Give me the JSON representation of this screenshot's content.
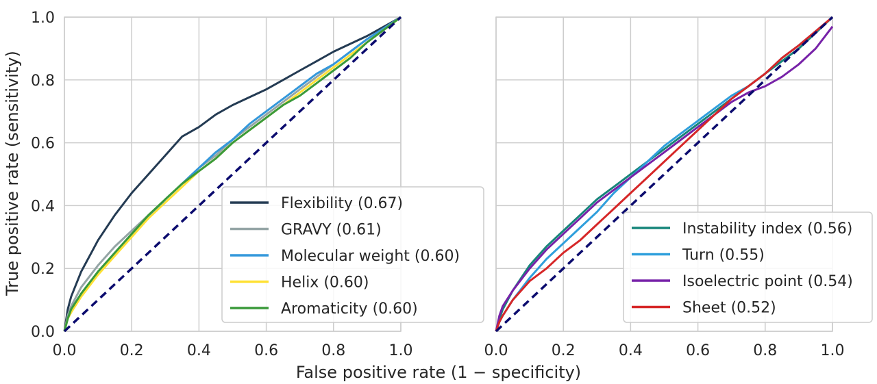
{
  "figure": {
    "ylabel": "True positive rate (sensitivity)",
    "xlabel": "False positive rate (1 − specificity)"
  },
  "chart_data": [
    {
      "type": "line",
      "xlim": [
        0,
        1
      ],
      "ylim": [
        0,
        1
      ],
      "grid": true,
      "legend_position": "lower-right",
      "x_ticks": [
        "0.0",
        "0.2",
        "0.4",
        "0.6",
        "0.8",
        "1.0"
      ],
      "y_ticks": [
        "0.0",
        "0.2",
        "0.4",
        "0.6",
        "0.8",
        "1.0"
      ],
      "diagonal": {
        "points": [
          [
            0,
            0
          ],
          [
            1,
            1
          ]
        ],
        "color": "#0b0b6e",
        "style": "dashed"
      },
      "series": [
        {
          "name": "Flexibility (0.67)",
          "color": "#243b53",
          "points": [
            [
              0,
              0
            ],
            [
              0.01,
              0.07
            ],
            [
              0.02,
              0.11
            ],
            [
              0.05,
              0.19
            ],
            [
              0.08,
              0.25
            ],
            [
              0.1,
              0.29
            ],
            [
              0.15,
              0.37
            ],
            [
              0.2,
              0.44
            ],
            [
              0.25,
              0.5
            ],
            [
              0.3,
              0.56
            ],
            [
              0.35,
              0.62
            ],
            [
              0.4,
              0.65
            ],
            [
              0.45,
              0.69
            ],
            [
              0.5,
              0.72
            ],
            [
              0.55,
              0.745
            ],
            [
              0.6,
              0.77
            ],
            [
              0.65,
              0.8
            ],
            [
              0.7,
              0.83
            ],
            [
              0.75,
              0.86
            ],
            [
              0.8,
              0.89
            ],
            [
              0.85,
              0.915
            ],
            [
              0.9,
              0.94
            ],
            [
              0.95,
              0.97
            ],
            [
              1,
              1
            ]
          ]
        },
        {
          "name": "GRAVY (0.61)",
          "color": "#95a5a6",
          "points": [
            [
              0,
              0
            ],
            [
              0.01,
              0.05
            ],
            [
              0.02,
              0.08
            ],
            [
              0.05,
              0.14
            ],
            [
              0.1,
              0.21
            ],
            [
              0.15,
              0.27
            ],
            [
              0.2,
              0.32
            ],
            [
              0.25,
              0.37
            ],
            [
              0.3,
              0.42
            ],
            [
              0.35,
              0.47
            ],
            [
              0.4,
              0.52
            ],
            [
              0.45,
              0.56
            ],
            [
              0.5,
              0.61
            ],
            [
              0.55,
              0.65
            ],
            [
              0.6,
              0.69
            ],
            [
              0.65,
              0.73
            ],
            [
              0.7,
              0.77
            ],
            [
              0.75,
              0.81
            ],
            [
              0.8,
              0.85
            ],
            [
              0.85,
              0.89
            ],
            [
              0.9,
              0.93
            ],
            [
              0.95,
              0.965
            ],
            [
              1,
              1
            ]
          ]
        },
        {
          "name": "Molecular weight (0.60)",
          "color": "#3498db",
          "points": [
            [
              0,
              0
            ],
            [
              0.01,
              0.04
            ],
            [
              0.02,
              0.07
            ],
            [
              0.05,
              0.12
            ],
            [
              0.1,
              0.19
            ],
            [
              0.15,
              0.25
            ],
            [
              0.2,
              0.31
            ],
            [
              0.25,
              0.36
            ],
            [
              0.3,
              0.42
            ],
            [
              0.35,
              0.47
            ],
            [
              0.4,
              0.52
            ],
            [
              0.45,
              0.57
            ],
            [
              0.5,
              0.61
            ],
            [
              0.55,
              0.66
            ],
            [
              0.6,
              0.7
            ],
            [
              0.65,
              0.74
            ],
            [
              0.7,
              0.78
            ],
            [
              0.75,
              0.82
            ],
            [
              0.8,
              0.85
            ],
            [
              0.85,
              0.89
            ],
            [
              0.9,
              0.93
            ],
            [
              0.95,
              0.965
            ],
            [
              1,
              1
            ]
          ]
        },
        {
          "name": "Helix (0.60)",
          "color": "#ffe135",
          "points": [
            [
              0,
              0
            ],
            [
              0.01,
              0.04
            ],
            [
              0.02,
              0.06
            ],
            [
              0.05,
              0.11
            ],
            [
              0.1,
              0.18
            ],
            [
              0.15,
              0.24
            ],
            [
              0.2,
              0.3
            ],
            [
              0.25,
              0.36
            ],
            [
              0.3,
              0.41
            ],
            [
              0.35,
              0.46
            ],
            [
              0.4,
              0.51
            ],
            [
              0.45,
              0.55
            ],
            [
              0.5,
              0.6
            ],
            [
              0.55,
              0.64
            ],
            [
              0.6,
              0.68
            ],
            [
              0.65,
              0.72
            ],
            [
              0.7,
              0.76
            ],
            [
              0.75,
              0.8
            ],
            [
              0.8,
              0.84
            ],
            [
              0.85,
              0.88
            ],
            [
              0.9,
              0.92
            ],
            [
              0.95,
              0.96
            ],
            [
              1,
              1
            ]
          ]
        },
        {
          "name": "Aromaticity (0.60)",
          "color": "#3a9a3a",
          "points": [
            [
              0,
              0
            ],
            [
              0.01,
              0.04
            ],
            [
              0.02,
              0.07
            ],
            [
              0.05,
              0.12
            ],
            [
              0.1,
              0.19
            ],
            [
              0.15,
              0.25
            ],
            [
              0.2,
              0.31
            ],
            [
              0.25,
              0.37
            ],
            [
              0.3,
              0.42
            ],
            [
              0.35,
              0.47
            ],
            [
              0.4,
              0.51
            ],
            [
              0.45,
              0.55
            ],
            [
              0.5,
              0.6
            ],
            [
              0.55,
              0.64
            ],
            [
              0.6,
              0.68
            ],
            [
              0.65,
              0.72
            ],
            [
              0.7,
              0.75
            ],
            [
              0.75,
              0.79
            ],
            [
              0.8,
              0.83
            ],
            [
              0.85,
              0.87
            ],
            [
              0.9,
              0.92
            ],
            [
              0.95,
              0.96
            ],
            [
              1,
              1
            ]
          ]
        }
      ]
    },
    {
      "type": "line",
      "xlim": [
        0,
        1
      ],
      "ylim": [
        0,
        1
      ],
      "grid": true,
      "legend_position": "lower-right",
      "x_ticks": [
        "0.0",
        "0.2",
        "0.4",
        "0.6",
        "0.8",
        "1.0"
      ],
      "y_ticks": [],
      "diagonal": {
        "points": [
          [
            0,
            0
          ],
          [
            1,
            1
          ]
        ],
        "color": "#0b0b6e",
        "style": "dashed"
      },
      "series": [
        {
          "name": "Instability index (0.56)",
          "color": "#16857a",
          "points": [
            [
              0,
              0
            ],
            [
              0.01,
              0.04
            ],
            [
              0.02,
              0.07
            ],
            [
              0.05,
              0.13
            ],
            [
              0.1,
              0.21
            ],
            [
              0.15,
              0.27
            ],
            [
              0.2,
              0.32
            ],
            [
              0.25,
              0.37
            ],
            [
              0.3,
              0.42
            ],
            [
              0.35,
              0.46
            ],
            [
              0.4,
              0.5
            ],
            [
              0.45,
              0.54
            ],
            [
              0.5,
              0.58
            ],
            [
              0.55,
              0.62
            ],
            [
              0.6,
              0.66
            ],
            [
              0.65,
              0.7
            ],
            [
              0.7,
              0.74
            ],
            [
              0.75,
              0.78
            ],
            [
              0.8,
              0.82
            ],
            [
              0.85,
              0.86
            ],
            [
              0.9,
              0.9
            ],
            [
              0.95,
              0.95
            ],
            [
              1,
              1
            ]
          ]
        },
        {
          "name": "Turn (0.55)",
          "color": "#2f9fdc",
          "points": [
            [
              0,
              0
            ],
            [
              0.01,
              0.03
            ],
            [
              0.02,
              0.05
            ],
            [
              0.05,
              0.1
            ],
            [
              0.1,
              0.17
            ],
            [
              0.15,
              0.23
            ],
            [
              0.2,
              0.28
            ],
            [
              0.25,
              0.33
            ],
            [
              0.3,
              0.38
            ],
            [
              0.35,
              0.44
            ],
            [
              0.4,
              0.49
            ],
            [
              0.45,
              0.54
            ],
            [
              0.5,
              0.59
            ],
            [
              0.55,
              0.63
            ],
            [
              0.6,
              0.67
            ],
            [
              0.65,
              0.71
            ],
            [
              0.7,
              0.75
            ],
            [
              0.75,
              0.78
            ],
            [
              0.8,
              0.82
            ],
            [
              0.85,
              0.87
            ],
            [
              0.9,
              0.91
            ],
            [
              0.95,
              0.955
            ],
            [
              1,
              1
            ]
          ]
        },
        {
          "name": "Isoelectric point (0.54)",
          "color": "#7722a8",
          "points": [
            [
              0,
              0
            ],
            [
              0.01,
              0.05
            ],
            [
              0.02,
              0.08
            ],
            [
              0.05,
              0.13
            ],
            [
              0.1,
              0.2
            ],
            [
              0.15,
              0.26
            ],
            [
              0.2,
              0.31
            ],
            [
              0.25,
              0.36
            ],
            [
              0.3,
              0.41
            ],
            [
              0.35,
              0.45
            ],
            [
              0.4,
              0.49
            ],
            [
              0.45,
              0.53
            ],
            [
              0.5,
              0.57
            ],
            [
              0.55,
              0.61
            ],
            [
              0.6,
              0.65
            ],
            [
              0.65,
              0.69
            ],
            [
              0.7,
              0.73
            ],
            [
              0.75,
              0.76
            ],
            [
              0.8,
              0.78
            ],
            [
              0.85,
              0.81
            ],
            [
              0.9,
              0.85
            ],
            [
              0.95,
              0.9
            ],
            [
              1,
              0.97
            ]
          ]
        },
        {
          "name": "Sheet (0.52)",
          "color": "#d62728",
          "points": [
            [
              0,
              0
            ],
            [
              0.01,
              0.03
            ],
            [
              0.02,
              0.05
            ],
            [
              0.05,
              0.1
            ],
            [
              0.1,
              0.16
            ],
            [
              0.15,
              0.2
            ],
            [
              0.2,
              0.25
            ],
            [
              0.25,
              0.29
            ],
            [
              0.3,
              0.34
            ],
            [
              0.35,
              0.39
            ],
            [
              0.4,
              0.44
            ],
            [
              0.45,
              0.49
            ],
            [
              0.5,
              0.54
            ],
            [
              0.55,
              0.59
            ],
            [
              0.6,
              0.64
            ],
            [
              0.65,
              0.69
            ],
            [
              0.7,
              0.74
            ],
            [
              0.75,
              0.78
            ],
            [
              0.8,
              0.82
            ],
            [
              0.85,
              0.87
            ],
            [
              0.9,
              0.91
            ],
            [
              0.95,
              0.955
            ],
            [
              1,
              1
            ]
          ]
        }
      ]
    }
  ]
}
